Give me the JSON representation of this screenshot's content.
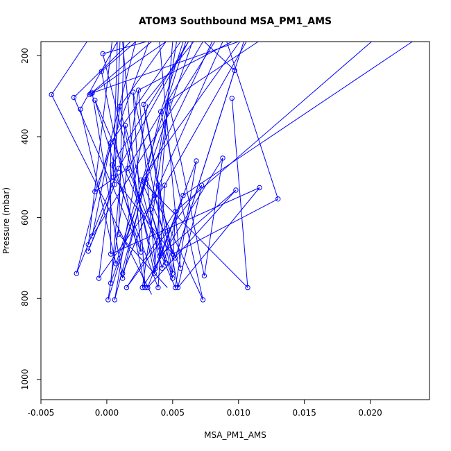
{
  "chart_data": {
    "type": "line",
    "title": "ATOM3 Southbound MSA_PM1_AMS",
    "xlabel": "MSA_PM1_AMS",
    "ylabel": "Pressure (mbar)",
    "xlim": [
      -0.005,
      0.0245
    ],
    "ylim": [
      1050,
      165
    ],
    "y_reversed": true,
    "grid": false,
    "x_ticks": [
      -0.005,
      0.0,
      0.005,
      0.01,
      0.015,
      0.02
    ],
    "x_tick_labels": [
      "-0.005",
      "0.000",
      "0.005",
      "0.010",
      "0.015",
      "0.020"
    ],
    "y_ticks": [
      200,
      400,
      600,
      800,
      1000
    ],
    "y_tick_labels": [
      "200",
      "400",
      "600",
      "800",
      "1000"
    ],
    "color": "#0000ff",
    "points": [
      [
        -0.0042,
        296
      ],
      [
        -0.0025,
        303
      ],
      [
        -0.002,
        332
      ],
      [
        -0.0013,
        296
      ],
      [
        -0.0012,
        293
      ],
      [
        -0.0011,
        292
      ],
      [
        -0.0009,
        310
      ],
      [
        -0.0004,
        239
      ],
      [
        -0.0003,
        195
      ],
      [
        0.0003,
        415
      ],
      [
        0.0004,
        470
      ],
      [
        0.0005,
        500
      ],
      [
        0.0006,
        518
      ],
      [
        0.0009,
        478
      ],
      [
        0.001,
        325
      ],
      [
        0.0014,
        372
      ],
      [
        0.0016,
        478
      ],
      [
        0.002,
        290
      ],
      [
        0.0024,
        285
      ],
      [
        0.0026,
        507
      ],
      [
        0.0028,
        320
      ],
      [
        0.003,
        505
      ],
      [
        0.0033,
        580
      ],
      [
        0.0036,
        545
      ],
      [
        0.0039,
        520
      ],
      [
        0.0041,
        338
      ],
      [
        0.0044,
        520
      ],
      [
        0.0047,
        312
      ],
      [
        0.005,
        690
      ],
      [
        0.0052,
        585
      ],
      [
        0.0058,
        545
      ],
      [
        0.0068,
        460
      ],
      [
        0.0072,
        520
      ],
      [
        0.0088,
        453
      ],
      [
        0.0098,
        532
      ],
      [
        0.0097,
        236
      ],
      [
        0.0095,
        305
      ],
      [
        0.0116,
        526
      ],
      [
        0.013,
        554
      ],
      [
        -0.0014,
        667
      ],
      [
        -0.0014,
        683
      ],
      [
        -0.0011,
        645
      ],
      [
        -0.0009,
        536
      ],
      [
        -0.0023,
        738
      ],
      [
        -0.0006,
        750
      ],
      [
        0.0001,
        803
      ],
      [
        0.0003,
        762
      ],
      [
        0.0006,
        803
      ],
      [
        0.0007,
        714
      ],
      [
        0.0009,
        641
      ],
      [
        0.0012,
        738
      ],
      [
        0.0015,
        773
      ],
      [
        0.0012,
        750
      ],
      [
        0.0026,
        685
      ],
      [
        0.0027,
        773
      ],
      [
        0.0029,
        773
      ],
      [
        0.0031,
        773
      ],
      [
        0.0036,
        738
      ],
      [
        0.0037,
        725
      ],
      [
        0.0039,
        773
      ],
      [
        0.0042,
        725
      ],
      [
        0.0045,
        712
      ],
      [
        0.005,
        738
      ],
      [
        0.005,
        750
      ],
      [
        0.0052,
        773
      ],
      [
        0.0054,
        773
      ],
      [
        0.0056,
        725
      ],
      [
        0.0074,
        744
      ],
      [
        0.0073,
        803
      ],
      [
        0.0107,
        773
      ],
      [
        0.0003,
        690
      ],
      [
        0.004,
        695
      ],
      [
        0.0052,
        700
      ]
    ],
    "segments": [
      [
        [
          -0.0042,
          296
        ],
        [
          0.0034,
          790
        ]
      ],
      [
        [
          -0.0042,
          296
        ],
        [
          -0.0015,
          165
        ]
      ],
      [
        [
          -0.0025,
          303
        ],
        [
          0.0018,
          165
        ]
      ],
      [
        [
          -0.0025,
          303
        ],
        [
          0.0026,
          685
        ]
      ],
      [
        [
          -0.002,
          332
        ],
        [
          0.0008,
          165
        ]
      ],
      [
        [
          -0.002,
          332
        ],
        [
          0.0007,
          714
        ]
      ],
      [
        [
          -0.0013,
          296
        ],
        [
          0.0045,
          165
        ]
      ],
      [
        [
          -0.0011,
          292
        ],
        [
          0.0012,
          750
        ]
      ],
      [
        [
          -0.0009,
          310
        ],
        [
          0.0052,
          773
        ]
      ],
      [
        [
          -0.0004,
          239
        ],
        [
          0.0022,
          165
        ]
      ],
      [
        [
          -0.0004,
          239
        ],
        [
          0.0029,
          773
        ]
      ],
      [
        [
          -0.0003,
          195
        ],
        [
          0.003,
          165
        ]
      ],
      [
        [
          -0.0003,
          195
        ],
        [
          0.0037,
          725
        ]
      ],
      [
        [
          0.0003,
          415
        ],
        [
          0.0056,
          165
        ]
      ],
      [
        [
          0.0003,
          415
        ],
        [
          -0.0011,
          645
        ]
      ],
      [
        [
          0.0004,
          470
        ],
        [
          0.0062,
          165
        ]
      ],
      [
        [
          0.0004,
          470
        ],
        [
          0.0039,
          773
        ]
      ],
      [
        [
          0.0005,
          500
        ],
        [
          0.0008,
          165
        ]
      ],
      [
        [
          0.0006,
          518
        ],
        [
          -0.0014,
          683
        ]
      ],
      [
        [
          0.0009,
          478
        ],
        [
          0.0062,
          165
        ]
      ],
      [
        [
          0.001,
          325
        ],
        [
          0.0036,
          738
        ]
      ],
      [
        [
          0.001,
          325
        ],
        [
          0.0045,
          165
        ]
      ],
      [
        [
          0.0014,
          372
        ],
        [
          0.0042,
          725
        ]
      ],
      [
        [
          0.0016,
          478
        ],
        [
          0.0073,
          165
        ]
      ],
      [
        [
          0.0016,
          478
        ],
        [
          -0.0009,
          536
        ]
      ],
      [
        [
          0.002,
          290
        ],
        [
          0.005,
          750
        ]
      ],
      [
        [
          0.0024,
          285
        ],
        [
          0.0095,
          165
        ]
      ],
      [
        [
          0.0024,
          285
        ],
        [
          0.0001,
          803
        ]
      ],
      [
        [
          0.0026,
          507
        ],
        [
          0.0101,
          165
        ]
      ],
      [
        [
          0.0026,
          507
        ],
        [
          0.0056,
          725
        ]
      ],
      [
        [
          0.0028,
          320
        ],
        [
          0.0066,
          165
        ]
      ],
      [
        [
          0.0028,
          320
        ],
        [
          0.005,
          738
        ]
      ],
      [
        [
          0.003,
          505
        ],
        [
          0.008,
          165
        ]
      ],
      [
        [
          0.003,
          505
        ],
        [
          0.0006,
          803
        ]
      ],
      [
        [
          0.0033,
          580
        ],
        [
          0.0053,
          165
        ]
      ],
      [
        [
          0.0033,
          580
        ],
        [
          0.0045,
          712
        ]
      ],
      [
        [
          0.0036,
          545
        ],
        [
          0.0088,
          165
        ]
      ],
      [
        [
          0.0036,
          545
        ],
        [
          0.0012,
          738
        ]
      ],
      [
        [
          0.0039,
          520
        ],
        [
          0.005,
          690
        ]
      ],
      [
        [
          0.0041,
          338
        ],
        [
          0.0058,
          165
        ]
      ],
      [
        [
          0.0041,
          338
        ],
        [
          0.0073,
          803
        ]
      ],
      [
        [
          0.0044,
          520
        ],
        [
          0.0106,
          165
        ]
      ],
      [
        [
          0.0044,
          520
        ],
        [
          -0.0006,
          750
        ]
      ],
      [
        [
          0.0047,
          312
        ],
        [
          0.0115,
          165
        ]
      ],
      [
        [
          0.0047,
          312
        ],
        [
          0.0027,
          773
        ]
      ],
      [
        [
          0.005,
          690
        ],
        [
          0.013,
          554
        ]
      ],
      [
        [
          0.0052,
          585
        ],
        [
          0.0201,
          165
        ]
      ],
      [
        [
          0.0052,
          585
        ],
        [
          0.0015,
          773
        ]
      ],
      [
        [
          0.0058,
          545
        ],
        [
          0.0232,
          165
        ]
      ],
      [
        [
          0.0058,
          545
        ],
        [
          0.0036,
          738
        ]
      ],
      [
        [
          0.0068,
          460
        ],
        [
          0.0031,
          773
        ]
      ],
      [
        [
          0.0072,
          520
        ],
        [
          0.0054,
          773
        ]
      ],
      [
        [
          0.0088,
          453
        ],
        [
          0.0074,
          744
        ]
      ],
      [
        [
          0.0098,
          532
        ],
        [
          0.004,
          695
        ]
      ],
      [
        [
          0.0097,
          236
        ],
        [
          0.0074,
          165
        ]
      ],
      [
        [
          0.0097,
          236
        ],
        [
          0.0052,
          700
        ]
      ],
      [
        [
          0.0095,
          305
        ],
        [
          0.0107,
          773
        ]
      ],
      [
        [
          0.0116,
          526
        ],
        [
          0.0003,
          690
        ]
      ],
      [
        [
          0.0116,
          526
        ],
        [
          0.0054,
          773
        ]
      ],
      [
        [
          0.013,
          554
        ],
        [
          0.0091,
          165
        ]
      ],
      [
        [
          -0.0014,
          667
        ],
        [
          0.0004,
          165
        ]
      ],
      [
        [
          -0.0014,
          683
        ],
        [
          0.0006,
          518
        ]
      ],
      [
        [
          -0.0011,
          645
        ],
        [
          0.0082,
          165
        ]
      ],
      [
        [
          -0.0009,
          536
        ],
        [
          0.0032,
          165
        ]
      ],
      [
        [
          -0.0023,
          738
        ],
        [
          0.0022,
          165
        ]
      ],
      [
        [
          -0.0023,
          738
        ],
        [
          0.0009,
          478
        ]
      ],
      [
        [
          -0.0006,
          750
        ],
        [
          0.001,
          325
        ]
      ],
      [
        [
          0.0001,
          803
        ],
        [
          0.0029,
          505
        ]
      ],
      [
        [
          0.0003,
          762
        ],
        [
          0.0014,
          372
        ]
      ],
      [
        [
          0.0003,
          762
        ],
        [
          0.0065,
          165
        ]
      ],
      [
        [
          0.0006,
          803
        ],
        [
          0.0031,
          320
        ]
      ],
      [
        [
          0.0007,
          714
        ],
        [
          0.006,
          165
        ]
      ],
      [
        [
          0.0009,
          641
        ],
        [
          0.0013,
          165
        ]
      ],
      [
        [
          0.0009,
          641
        ],
        [
          0.0046,
          773
        ]
      ],
      [
        [
          0.0012,
          738
        ],
        [
          0.0036,
          545
        ]
      ],
      [
        [
          0.0015,
          773
        ],
        [
          0.0072,
          520
        ]
      ],
      [
        [
          0.0012,
          750
        ],
        [
          0.0041,
          338
        ]
      ],
      [
        [
          0.0026,
          685
        ],
        [
          0.0012,
          165
        ]
      ],
      [
        [
          0.0026,
          685
        ],
        [
          -0.0009,
          310
        ]
      ],
      [
        [
          0.0027,
          773
        ],
        [
          0.0088,
          453
        ]
      ],
      [
        [
          0.0029,
          773
        ],
        [
          0.002,
          290
        ]
      ],
      [
        [
          0.0031,
          773
        ],
        [
          0.0098,
          532
        ]
      ],
      [
        [
          0.0036,
          738
        ],
        [
          0.005,
          165
        ]
      ],
      [
        [
          0.0037,
          725
        ],
        [
          0.0024,
          285
        ]
      ],
      [
        [
          0.0039,
          773
        ],
        [
          0.0044,
          520
        ]
      ],
      [
        [
          0.0042,
          725
        ],
        [
          0.0058,
          545
        ]
      ],
      [
        [
          0.0045,
          712
        ],
        [
          0.0016,
          478
        ]
      ],
      [
        [
          0.005,
          738
        ],
        [
          0.0052,
          585
        ]
      ],
      [
        [
          0.005,
          750
        ],
        [
          0.0033,
          580
        ]
      ],
      [
        [
          0.0052,
          773
        ],
        [
          0.0068,
          460
        ]
      ],
      [
        [
          0.0054,
          773
        ],
        [
          0.0028,
          320
        ]
      ],
      [
        [
          0.0056,
          725
        ],
        [
          0.004,
          165
        ]
      ],
      [
        [
          0.0074,
          744
        ],
        [
          0.0047,
          312
        ]
      ],
      [
        [
          0.0073,
          803
        ],
        [
          0.003,
          505
        ]
      ],
      [
        [
          0.0107,
          773
        ],
        [
          0.0026,
          507
        ]
      ],
      [
        [
          0.0003,
          690
        ],
        [
          0.0003,
          415
        ]
      ],
      [
        [
          0.004,
          695
        ],
        [
          0.0039,
          520
        ]
      ],
      [
        [
          0.0052,
          700
        ],
        [
          0.0104,
          165
        ]
      ],
      [
        [
          0.0005,
          500
        ],
        [
          0.005,
          690
        ]
      ],
      [
        [
          -0.0012,
          293
        ],
        [
          0.0034,
          165
        ]
      ],
      [
        [
          -0.0011,
          292
        ],
        [
          0.01,
          165
        ]
      ],
      [
        [
          0.0006,
          518
        ],
        [
          0.001,
          165
        ]
      ]
    ]
  }
}
